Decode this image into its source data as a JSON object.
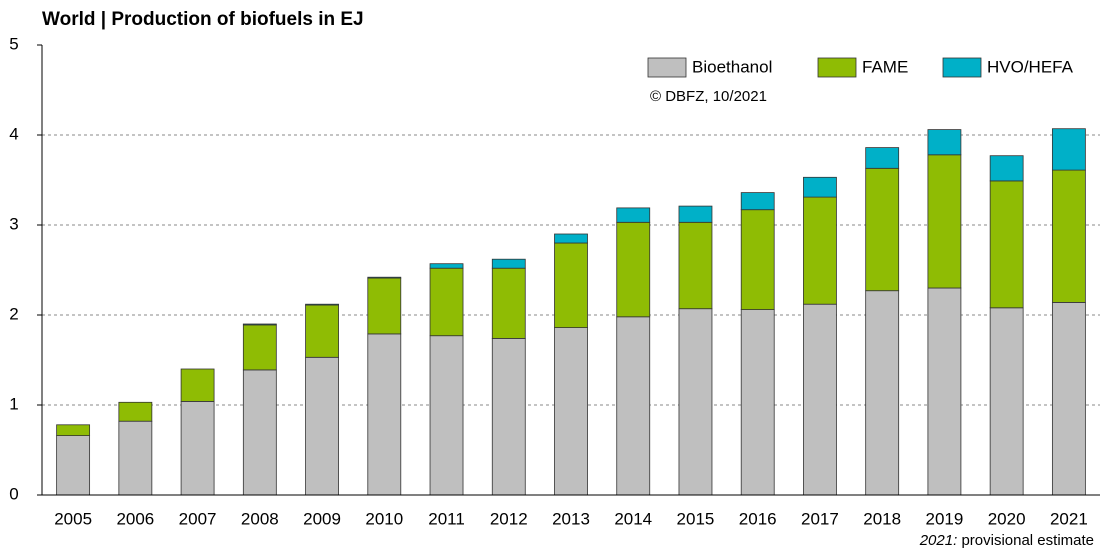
{
  "chart_data": {
    "type": "stacked_bar",
    "title": "World | Production of biofuels in EJ",
    "source": "© DBFZ, 10/2021",
    "note_year": "2021:",
    "note_text": "provisional estimate",
    "categories": [
      "2005",
      "2006",
      "2007",
      "2008",
      "2009",
      "2010",
      "2011",
      "2012",
      "2013",
      "2014",
      "2015",
      "2016",
      "2017",
      "2018",
      "2019",
      "2020",
      "2021"
    ],
    "series": [
      {
        "name": "Bioethanol",
        "color": "#bfbfbf",
        "values": [
          0.66,
          0.82,
          1.04,
          1.39,
          1.53,
          1.79,
          1.77,
          1.74,
          1.86,
          1.98,
          2.07,
          2.06,
          2.12,
          2.27,
          2.3,
          2.08,
          2.14
        ]
      },
      {
        "name": "FAME",
        "color": "#8fbc04",
        "values": [
          0.12,
          0.21,
          0.36,
          0.5,
          0.58,
          0.62,
          0.75,
          0.78,
          0.94,
          1.05,
          0.96,
          1.11,
          1.19,
          1.36,
          1.48,
          1.41,
          1.47
        ]
      },
      {
        "name": "HVO/HEFA",
        "color": "#00b0c8",
        "values": [
          0,
          0,
          0,
          0.01,
          0.01,
          0.01,
          0.05,
          0.1,
          0.1,
          0.16,
          0.18,
          0.19,
          0.22,
          0.23,
          0.28,
          0.28,
          0.46
        ]
      }
    ],
    "ylim": [
      0,
      5
    ],
    "yticks": [
      0,
      1,
      2,
      3,
      4,
      5
    ],
    "grid": true,
    "legend": "top-right"
  }
}
